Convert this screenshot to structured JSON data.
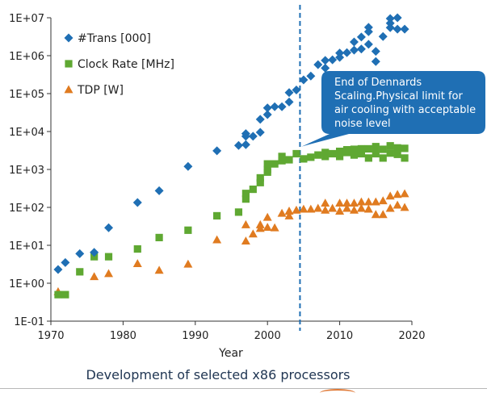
{
  "chart_data": {
    "type": "scatter",
    "title": "",
    "xlabel": "Year",
    "ylabel": "",
    "xlim": [
      1970,
      2020
    ],
    "ylim_log10": [
      -1,
      7
    ],
    "y_scale": "log",
    "x_ticks": [
      "1970",
      "1980",
      "1990",
      "2000",
      "2010",
      "2020"
    ],
    "y_ticks": [
      "1E-01",
      "1E+00",
      "1E+01",
      "1E+02",
      "1E+03",
      "1E+04",
      "1E+05",
      "1E+06",
      "1E+07"
    ],
    "legend_position": "top-left",
    "grid": false,
    "series": [
      {
        "name": "#Trans [000]",
        "marker": "diamond",
        "color": "#1f6fb4",
        "points": [
          [
            1971,
            2.3
          ],
          [
            1972,
            3.5
          ],
          [
            1974,
            6
          ],
          [
            1976,
            6.5
          ],
          [
            1978,
            29
          ],
          [
            1982,
            134
          ],
          [
            1985,
            275
          ],
          [
            1989,
            1200
          ],
          [
            1993,
            3100
          ],
          [
            1996,
            4300
          ],
          [
            1997,
            4500
          ],
          [
            1997,
            7500
          ],
          [
            1997,
            8800
          ],
          [
            1998,
            7500
          ],
          [
            1999,
            9500
          ],
          [
            1999,
            21000
          ],
          [
            2000,
            28000
          ],
          [
            2000,
            42000
          ],
          [
            2001,
            45000
          ],
          [
            2002,
            45000
          ],
          [
            2003,
            60000
          ],
          [
            2003,
            106000
          ],
          [
            2004,
            125000
          ],
          [
            2005,
            230000
          ],
          [
            2006,
            290000
          ],
          [
            2007,
            580000
          ],
          [
            2008,
            470000
          ],
          [
            2008,
            750000
          ],
          [
            2009,
            780000
          ],
          [
            2010,
            1170000
          ],
          [
            2010,
            900000
          ],
          [
            2011,
            1200000
          ],
          [
            2012,
            1400000
          ],
          [
            2012,
            2300000
          ],
          [
            2013,
            1500000
          ],
          [
            2013,
            3100000
          ],
          [
            2014,
            4300000
          ],
          [
            2014,
            5600000
          ],
          [
            2014,
            2000000
          ],
          [
            2015,
            1300000
          ],
          [
            2015,
            700000
          ],
          [
            2016,
            3200000
          ],
          [
            2017,
            5500000
          ],
          [
            2017,
            7200000
          ],
          [
            2017,
            9500000
          ],
          [
            2018,
            5000000
          ],
          [
            2018,
            10000000
          ],
          [
            2019,
            5000000
          ]
        ]
      },
      {
        "name": "Clock Rate [MHz]",
        "marker": "square",
        "color": "#5fa832",
        "points": [
          [
            1971,
            0.5
          ],
          [
            1972,
            0.5
          ],
          [
            1974,
            2
          ],
          [
            1976,
            5
          ],
          [
            1978,
            5
          ],
          [
            1982,
            8
          ],
          [
            1985,
            16
          ],
          [
            1989,
            25
          ],
          [
            1993,
            60
          ],
          [
            1996,
            75
          ],
          [
            1997,
            166
          ],
          [
            1997,
            233
          ],
          [
            1998,
            300
          ],
          [
            1999,
            450
          ],
          [
            1999,
            600
          ],
          [
            2000,
            850
          ],
          [
            2000,
            1000
          ],
          [
            2000,
            1400
          ],
          [
            2001,
            1400
          ],
          [
            2002,
            1700
          ],
          [
            2002,
            2200
          ],
          [
            2003,
            1800
          ],
          [
            2004,
            2600
          ],
          [
            2005,
            1900
          ],
          [
            2006,
            2100
          ],
          [
            2007,
            2400
          ],
          [
            2008,
            2200
          ],
          [
            2008,
            2800
          ],
          [
            2009,
            2600
          ],
          [
            2010,
            3000
          ],
          [
            2010,
            2200
          ],
          [
            2011,
            3300
          ],
          [
            2011,
            2800
          ],
          [
            2012,
            3400
          ],
          [
            2012,
            2400
          ],
          [
            2013,
            3500
          ],
          [
            2013,
            2600
          ],
          [
            2014,
            3500
          ],
          [
            2014,
            2000
          ],
          [
            2015,
            4000
          ],
          [
            2015,
            2600
          ],
          [
            2016,
            3400
          ],
          [
            2016,
            2000
          ],
          [
            2017,
            4200
          ],
          [
            2017,
            2700
          ],
          [
            2018,
            3700
          ],
          [
            2018,
            2500
          ],
          [
            2019,
            3600
          ],
          [
            2019,
            2000
          ]
        ]
      },
      {
        "name": "TDP [W]",
        "marker": "triangle",
        "color": "#e07b20",
        "points": [
          [
            1971,
            0.6
          ],
          [
            1976,
            1.5
          ],
          [
            1978,
            1.8
          ],
          [
            1982,
            3.3
          ],
          [
            1985,
            2.2
          ],
          [
            1989,
            3.2
          ],
          [
            1993,
            14
          ],
          [
            1997,
            35
          ],
          [
            1997,
            13
          ],
          [
            1998,
            20
          ],
          [
            1999,
            35
          ],
          [
            1999,
            28
          ],
          [
            2000,
            55
          ],
          [
            2000,
            30
          ],
          [
            2001,
            29
          ],
          [
            2002,
            70
          ],
          [
            2003,
            60
          ],
          [
            2003,
            80
          ],
          [
            2004,
            85
          ],
          [
            2005,
            90
          ],
          [
            2006,
            90
          ],
          [
            2007,
            95
          ],
          [
            2008,
            85
          ],
          [
            2008,
            130
          ],
          [
            2009,
            95
          ],
          [
            2010,
            130
          ],
          [
            2010,
            80
          ],
          [
            2011,
            130
          ],
          [
            2011,
            95
          ],
          [
            2012,
            130
          ],
          [
            2012,
            85
          ],
          [
            2013,
            140
          ],
          [
            2013,
            95
          ],
          [
            2014,
            140
          ],
          [
            2014,
            90
          ],
          [
            2015,
            140
          ],
          [
            2015,
            65
          ],
          [
            2016,
            150
          ],
          [
            2016,
            65
          ],
          [
            2017,
            200
          ],
          [
            2017,
            95
          ],
          [
            2018,
            220
          ],
          [
            2018,
            115
          ],
          [
            2019,
            230
          ],
          [
            2019,
            100
          ]
        ]
      }
    ],
    "reference_line": {
      "x": 2004.5,
      "style": "dashed",
      "color": "#1f6fb4"
    },
    "annotation": {
      "text": "End of  Dennards Scaling.Physical limit  for air cooling with acceptable noise level",
      "lines": [
        "End of  Dennards",
        "Scaling.Physical limit  for",
        "air cooling with acceptable",
        "noise level"
      ],
      "color": "#1f6fb4",
      "points_to": {
        "x": 2004.5,
        "y": 3000
      }
    }
  },
  "caption": "Development of selected x86 processors"
}
